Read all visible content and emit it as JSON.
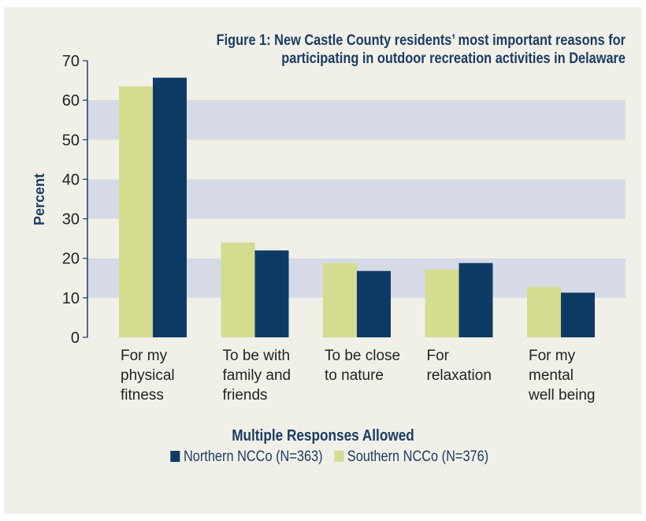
{
  "chart_data": {
    "type": "bar",
    "title": [
      "Figure 1: New Castle County residents’ most important reasons for",
      "participating in outdoor recreation activities in Delaware"
    ],
    "ylabel": "Percent",
    "xlabel": "Multiple Responses Allowed",
    "ylim": [
      0,
      70
    ],
    "yticks": [
      0,
      10,
      20,
      30,
      40,
      50,
      60,
      70
    ],
    "grid": "alternating horizontal bands",
    "categories": [
      [
        "For my",
        "physical",
        "fitness"
      ],
      [
        "To be with",
        "family and",
        "friends"
      ],
      [
        "To be close",
        "to nature"
      ],
      [
        "For",
        "relaxation"
      ],
      [
        "For my",
        "mental",
        "well being"
      ]
    ],
    "series": [
      {
        "name": "Southern NCCo (N=376)",
        "color": "#d4dc8f",
        "values": [
          63.5,
          24,
          18.8,
          17.2,
          12.8
        ]
      },
      {
        "name": "Northern NCCo (N=363)",
        "color": "#0d3b66",
        "values": [
          65.7,
          22,
          16.8,
          18.8,
          11.3
        ]
      }
    ],
    "legend": {
      "placement": "bottom",
      "order": [
        "Northern NCCo (N=363)",
        "Southern NCCo (N=376)"
      ]
    },
    "colors": {
      "background": "#f1f0e8",
      "band": "#d6dae6",
      "text": "#1b3c63",
      "axis": "#1b3c63"
    }
  }
}
